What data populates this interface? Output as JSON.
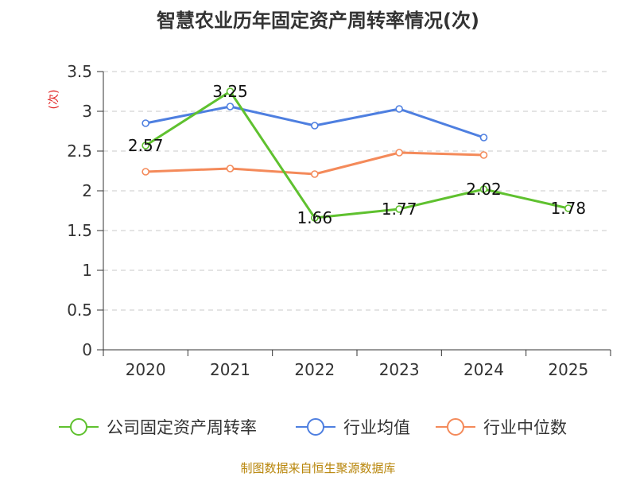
{
  "title": "智慧农业历年固定资产周转率情况(次)",
  "source": "制图数据来自恒生聚源数据库",
  "chart_data": {
    "type": "line",
    "title": "智慧农业历年固定资产周转率情况(次)",
    "xlabel": "",
    "ylabel": "(次)",
    "ylim": [
      0,
      3.5
    ],
    "yticks": [
      "0",
      "0.5",
      "1",
      "1.5",
      "2",
      "2.5",
      "3",
      "3.5"
    ],
    "categories": [
      "2020",
      "2021",
      "2022",
      "2023",
      "2024",
      "2025"
    ],
    "grid": true,
    "legend_position": "bottom",
    "series": [
      {
        "name": "公司固定资产周转率",
        "color": "#5fc12f",
        "values": [
          2.57,
          3.25,
          1.66,
          1.77,
          2.02,
          1.78
        ],
        "labels": [
          "2.57",
          "3.25",
          "1.66",
          "1.77",
          "2.02",
          "1.78"
        ],
        "show_labels": true
      },
      {
        "name": "行业均值",
        "color": "#4e7fe0",
        "values": [
          2.85,
          3.06,
          2.82,
          3.03,
          2.67,
          null
        ],
        "show_labels": false
      },
      {
        "name": "行业中位数",
        "color": "#f48a5a",
        "values": [
          2.24,
          2.28,
          2.21,
          2.48,
          2.45,
          null
        ],
        "show_labels": false
      }
    ]
  }
}
